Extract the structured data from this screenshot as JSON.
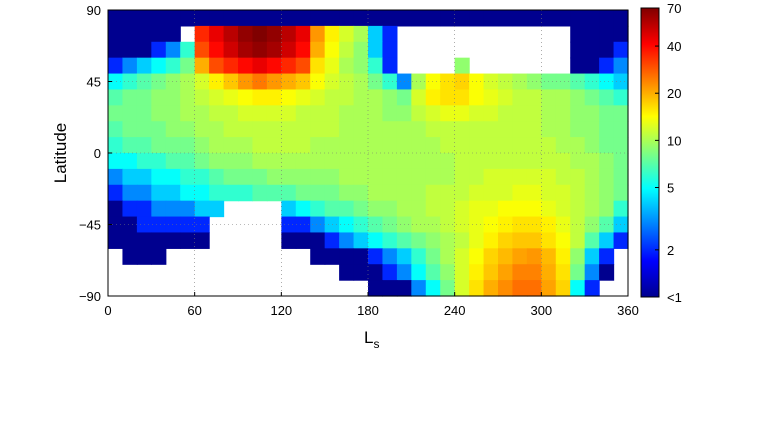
{
  "chart_data": {
    "type": "heatmap",
    "title": "",
    "xlabel": "L",
    "xlabel_subscript": "s",
    "ylabel": "Latitude",
    "xlim": [
      0,
      360
    ],
    "ylim": [
      -90,
      90
    ],
    "grid": true,
    "x_ticks": [
      0,
      60,
      120,
      180,
      240,
      300,
      360
    ],
    "y_ticks": [
      -90,
      -45,
      0,
      45,
      90
    ],
    "x_tick_labels": [
      "0",
      "60",
      "120",
      "180",
      "240",
      "300",
      "360"
    ],
    "y_tick_labels": [
      "−90",
      "−45",
      "0",
      "45",
      "90"
    ],
    "colorbar": {
      "scale": "log",
      "range": [
        1,
        70
      ],
      "ticks": [
        70,
        40,
        20,
        10,
        5,
        2,
        1
      ],
      "tick_labels": [
        "70",
        "40",
        "20",
        "10",
        "5",
        "2",
        "<1"
      ],
      "colormap": "jet",
      "colors": [
        "#00008f",
        "#0000ff",
        "#0080ff",
        "#00ffff",
        "#80ff80",
        "#ffff00",
        "#ff8000",
        "#ff0000",
        "#800000"
      ]
    },
    "grid_resolution": {
      "ls_step": 10,
      "lat_step": 10
    },
    "ls_bins": [
      5,
      15,
      25,
      35,
      45,
      55,
      65,
      75,
      85,
      95,
      105,
      115,
      125,
      135,
      145,
      155,
      165,
      175,
      185,
      195,
      205,
      215,
      225,
      235,
      245,
      255,
      265,
      275,
      285,
      295,
      305,
      315,
      325,
      335,
      345,
      355
    ],
    "lat_bins": [
      85,
      75,
      65,
      55,
      45,
      35,
      25,
      15,
      5,
      -5,
      -15,
      -25,
      -35,
      -45,
      -55,
      -65,
      -75,
      -85
    ],
    "values": [
      [
        1,
        1,
        1,
        1,
        1,
        1,
        1,
        1,
        1,
        1,
        1,
        1,
        1,
        1,
        1,
        1,
        1,
        1,
        1,
        1,
        1,
        1,
        1,
        1,
        1,
        1,
        1,
        1,
        1,
        1,
        1,
        1,
        1,
        1,
        1,
        1
      ],
      [
        1,
        1,
        1,
        1,
        1,
        null,
        35,
        45,
        55,
        65,
        70,
        65,
        55,
        45,
        22,
        15,
        12,
        10,
        4,
        2,
        null,
        null,
        null,
        null,
        null,
        null,
        null,
        null,
        null,
        null,
        null,
        null,
        1,
        1,
        1,
        1
      ],
      [
        1,
        1,
        1,
        2,
        3,
        6,
        30,
        40,
        50,
        60,
        65,
        60,
        50,
        40,
        20,
        14,
        11,
        9,
        4,
        2,
        null,
        null,
        null,
        null,
        null,
        null,
        null,
        null,
        null,
        null,
        null,
        null,
        1,
        1,
        1,
        2
      ],
      [
        2,
        3,
        4,
        5,
        6,
        8,
        20,
        30,
        35,
        40,
        45,
        40,
        35,
        30,
        16,
        13,
        10,
        9,
        6,
        2,
        null,
        null,
        null,
        null,
        9,
        null,
        null,
        null,
        null,
        null,
        null,
        null,
        1,
        1,
        2,
        3
      ],
      [
        5,
        6,
        7,
        8,
        9,
        10,
        12,
        15,
        18,
        22,
        25,
        22,
        20,
        18,
        14,
        12,
        11,
        10,
        8,
        6,
        3,
        10,
        14,
        16,
        17,
        14,
        12,
        11,
        10,
        9,
        8,
        8,
        7,
        6,
        5,
        4
      ],
      [
        7,
        8,
        8,
        9,
        9,
        10,
        11,
        12,
        13,
        14,
        15,
        15,
        14,
        13,
        12,
        11,
        11,
        10,
        10,
        9,
        8,
        12,
        15,
        16,
        16,
        14,
        13,
        12,
        11,
        11,
        10,
        10,
        9,
        8,
        7,
        6
      ],
      [
        8,
        8,
        8,
        9,
        9,
        10,
        10,
        11,
        11,
        12,
        12,
        12,
        12,
        11,
        11,
        11,
        10,
        10,
        10,
        9,
        9,
        11,
        12,
        13,
        13,
        12,
        12,
        11,
        11,
        11,
        10,
        10,
        9,
        9,
        8,
        8
      ],
      [
        7,
        8,
        8,
        8,
        9,
        9,
        10,
        10,
        11,
        11,
        11,
        11,
        11,
        11,
        11,
        11,
        10,
        10,
        10,
        10,
        10,
        10,
        11,
        11,
        11,
        11,
        11,
        11,
        11,
        11,
        10,
        10,
        9,
        9,
        8,
        8
      ],
      [
        6,
        7,
        7,
        8,
        8,
        8,
        9,
        10,
        10,
        10,
        11,
        11,
        11,
        11,
        10,
        10,
        10,
        10,
        10,
        10,
        10,
        10,
        10,
        11,
        11,
        11,
        11,
        11,
        11,
        11,
        11,
        10,
        10,
        9,
        8,
        8
      ],
      [
        5,
        5,
        6,
        6,
        7,
        7,
        8,
        9,
        9,
        9,
        10,
        10,
        10,
        10,
        10,
        10,
        10,
        10,
        10,
        10,
        10,
        10,
        10,
        10,
        11,
        11,
        11,
        11,
        11,
        11,
        11,
        11,
        10,
        10,
        9,
        8
      ],
      [
        3,
        4,
        4,
        5,
        5,
        6,
        6,
        7,
        8,
        8,
        8,
        9,
        9,
        9,
        9,
        9,
        10,
        10,
        10,
        10,
        10,
        10,
        10,
        10,
        11,
        11,
        12,
        12,
        12,
        12,
        12,
        11,
        11,
        10,
        9,
        8
      ],
      [
        2,
        3,
        3,
        4,
        4,
        5,
        5,
        6,
        6,
        6,
        7,
        7,
        7,
        8,
        8,
        8,
        9,
        9,
        10,
        10,
        10,
        10,
        11,
        11,
        11,
        12,
        12,
        12,
        13,
        13,
        12,
        12,
        11,
        10,
        9,
        8
      ],
      [
        1,
        2,
        2,
        3,
        3,
        3,
        4,
        4,
        null,
        null,
        null,
        null,
        4,
        5,
        6,
        7,
        7,
        8,
        9,
        9,
        10,
        10,
        11,
        11,
        12,
        13,
        13,
        14,
        14,
        14,
        13,
        12,
        11,
        10,
        9,
        6
      ],
      [
        1,
        1,
        2,
        2,
        2,
        2,
        2,
        null,
        null,
        null,
        null,
        null,
        2,
        2,
        3,
        4,
        5,
        6,
        7,
        8,
        9,
        10,
        10,
        11,
        12,
        13,
        14,
        15,
        16,
        16,
        15,
        13,
        11,
        9,
        7,
        4
      ],
      [
        1,
        1,
        1,
        1,
        1,
        1,
        1,
        null,
        null,
        null,
        null,
        null,
        1,
        1,
        1,
        2,
        3,
        4,
        5,
        6,
        7,
        8,
        9,
        10,
        11,
        13,
        15,
        17,
        18,
        18,
        16,
        14,
        11,
        7,
        4,
        2
      ],
      [
        null,
        1,
        1,
        1,
        null,
        null,
        null,
        null,
        null,
        null,
        null,
        null,
        null,
        null,
        1,
        1,
        1,
        1,
        2,
        3,
        4,
        6,
        8,
        10,
        12,
        14,
        17,
        19,
        21,
        22,
        19,
        15,
        9,
        4,
        2,
        null
      ],
      [
        null,
        null,
        null,
        null,
        null,
        null,
        null,
        null,
        null,
        null,
        null,
        null,
        null,
        null,
        null,
        null,
        1,
        1,
        1,
        2,
        3,
        5,
        7,
        9,
        12,
        15,
        18,
        21,
        24,
        24,
        20,
        16,
        8,
        3,
        1,
        null
      ],
      [
        null,
        null,
        null,
        null,
        null,
        null,
        null,
        null,
        null,
        null,
        null,
        null,
        null,
        null,
        null,
        null,
        null,
        null,
        1,
        1,
        1,
        3,
        5,
        8,
        12,
        16,
        20,
        23,
        26,
        26,
        21,
        17,
        5,
        2,
        null,
        null
      ]
    ]
  }
}
